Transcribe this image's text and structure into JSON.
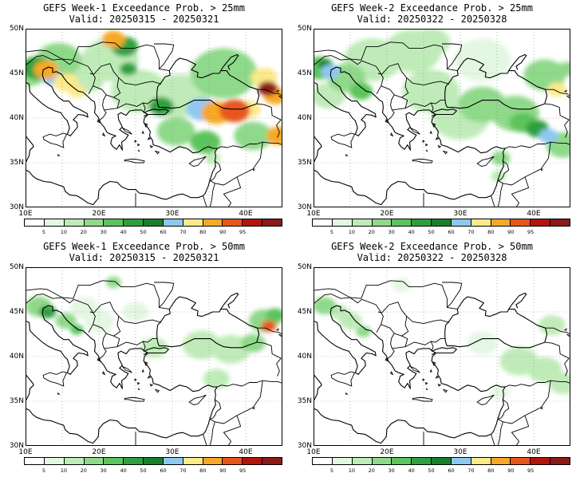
{
  "panels": [
    {
      "title": "GEFS Week-1 Exceedance Prob. > 25mm",
      "valid": "Valid: 20250315 - 20250321",
      "set": "w1_25"
    },
    {
      "title": "GEFS Week-2 Exceedance Prob. > 25mm",
      "valid": "Valid: 20250322 - 20250328",
      "set": "w2_25"
    },
    {
      "title": "GEFS Week-1 Exceedance Prob. > 50mm",
      "valid": "Valid: 20250315 - 20250321",
      "set": "w1_50"
    },
    {
      "title": "GEFS Week-2 Exceedance Prob. > 50mm",
      "valid": "Valid: 20250322 - 20250328",
      "set": "w2_50"
    }
  ],
  "axes": {
    "lat_labels": [
      "50N",
      "45N",
      "40N",
      "35N",
      "30N"
    ],
    "lat_values": [
      50,
      45,
      40,
      35,
      30
    ],
    "lon_labels": [
      "10E",
      "20E",
      "30E",
      "40E"
    ],
    "lon_values": [
      10,
      20,
      30,
      40
    ],
    "lon_range": [
      10,
      45
    ],
    "lat_range": [
      30,
      50
    ],
    "grid": "dotted"
  },
  "colorbar": {
    "levels": [
      "5",
      "10",
      "20",
      "30",
      "40",
      "50",
      "60",
      "70",
      "80",
      "90",
      "95"
    ],
    "colors": [
      "#ffffff",
      "#e4f7e2",
      "#bfebb8",
      "#8fd98a",
      "#5cc45c",
      "#2ea040",
      "#1a7f2a",
      "#8ec8f0",
      "#fbe98a",
      "#f7a828",
      "#e8561c",
      "#b3150e",
      "#8c1a1a"
    ]
  },
  "fields": {
    "w1_25": [
      {
        "lon": 11.5,
        "lat": 45.6,
        "r": 1.6,
        "lvl": 5
      },
      {
        "lon": 12.8,
        "lat": 45.4,
        "r": 1.3,
        "lvl": 9
      },
      {
        "lon": 13.6,
        "lat": 44.6,
        "r": 1.1,
        "lvl": 7
      },
      {
        "lon": 15.5,
        "lat": 44.0,
        "r": 1.3,
        "lvl": 8
      },
      {
        "lon": 17.0,
        "lat": 43.0,
        "r": 0.9,
        "lvl": 8
      },
      {
        "lon": 10.5,
        "lat": 45.0,
        "r": 1.8,
        "lvl": 3
      },
      {
        "lon": 14.5,
        "lat": 46.5,
        "r": 2.4,
        "lvl": 3
      },
      {
        "lon": 18.0,
        "lat": 44.5,
        "r": 2.2,
        "lvl": 2
      },
      {
        "lon": 21.5,
        "lat": 46.5,
        "r": 3.0,
        "lvl": 2
      },
      {
        "lon": 22.0,
        "lat": 48.8,
        "r": 1.2,
        "lvl": 9
      },
      {
        "lon": 23.5,
        "lat": 48.0,
        "r": 1.4,
        "lvl": 5
      },
      {
        "lon": 24.0,
        "lat": 45.5,
        "r": 0.9,
        "lvl": 5
      },
      {
        "lon": 25.5,
        "lat": 43.0,
        "r": 3.0,
        "lvl": 2
      },
      {
        "lon": 28.5,
        "lat": 41.3,
        "r": 1.3,
        "lvl": 5
      },
      {
        "lon": 30.5,
        "lat": 38.5,
        "r": 2.0,
        "lvl": 3
      },
      {
        "lon": 31.0,
        "lat": 42.5,
        "r": 3.0,
        "lvl": 2
      },
      {
        "lon": 34.0,
        "lat": 41.0,
        "r": 1.6,
        "lvl": 7
      },
      {
        "lon": 36.0,
        "lat": 40.6,
        "r": 1.6,
        "lvl": 9
      },
      {
        "lon": 38.5,
        "lat": 40.8,
        "r": 1.6,
        "lvl": 10
      },
      {
        "lon": 40.5,
        "lat": 41.0,
        "r": 1.2,
        "lvl": 8
      },
      {
        "lon": 37.0,
        "lat": 45.0,
        "r": 3.5,
        "lvl": 3
      },
      {
        "lon": 42.5,
        "lat": 44.5,
        "r": 1.4,
        "lvl": 8
      },
      {
        "lon": 43.0,
        "lat": 43.3,
        "r": 1.0,
        "lvl": 12
      },
      {
        "lon": 44.0,
        "lat": 42.5,
        "r": 1.2,
        "lvl": 9
      },
      {
        "lon": 44.5,
        "lat": 38.0,
        "r": 1.3,
        "lvl": 9
      },
      {
        "lon": 41.0,
        "lat": 38.0,
        "r": 2.0,
        "lvl": 3
      },
      {
        "lon": 34.5,
        "lat": 37.3,
        "r": 1.6,
        "lvl": 4
      },
      {
        "lon": 35.5,
        "lat": 35.5,
        "r": 0.8,
        "lvl": 2
      }
    ],
    "w2_25": [
      {
        "lon": 10.8,
        "lat": 45.6,
        "r": 1.6,
        "lvl": 4
      },
      {
        "lon": 12.3,
        "lat": 45.2,
        "r": 1.0,
        "lvl": 7
      },
      {
        "lon": 11.5,
        "lat": 46.0,
        "r": 0.7,
        "lvl": 6
      },
      {
        "lon": 14.5,
        "lat": 44.5,
        "r": 2.0,
        "lvl": 3
      },
      {
        "lon": 16.5,
        "lat": 43.0,
        "r": 1.2,
        "lvl": 4
      },
      {
        "lon": 12.0,
        "lat": 42.5,
        "r": 1.8,
        "lvl": 2
      },
      {
        "lon": 18.0,
        "lat": 46.5,
        "r": 3.0,
        "lvl": 2
      },
      {
        "lon": 23.5,
        "lat": 47.5,
        "r": 3.0,
        "lvl": 2
      },
      {
        "lon": 26.0,
        "lat": 43.0,
        "r": 3.0,
        "lvl": 2
      },
      {
        "lon": 30.0,
        "lat": 40.0,
        "r": 3.0,
        "lvl": 2
      },
      {
        "lon": 33.0,
        "lat": 41.5,
        "r": 2.5,
        "lvl": 3
      },
      {
        "lon": 37.5,
        "lat": 40.5,
        "r": 2.5,
        "lvl": 3
      },
      {
        "lon": 38.5,
        "lat": 39.5,
        "r": 1.4,
        "lvl": 4
      },
      {
        "lon": 40.5,
        "lat": 38.8,
        "r": 1.2,
        "lvl": 5
      },
      {
        "lon": 42.0,
        "lat": 38.0,
        "r": 1.0,
        "lvl": 7
      },
      {
        "lon": 43.2,
        "lat": 43.2,
        "r": 1.0,
        "lvl": 8
      },
      {
        "lon": 41.5,
        "lat": 44.8,
        "r": 2.2,
        "lvl": 3
      },
      {
        "lon": 33.0,
        "lat": 46.5,
        "r": 3.0,
        "lvl": 1
      },
      {
        "lon": 26.0,
        "lat": 48.5,
        "r": 2.0,
        "lvl": 2
      },
      {
        "lon": 35.5,
        "lat": 35.5,
        "r": 1.0,
        "lvl": 3
      },
      {
        "lon": 35.2,
        "lat": 33.5,
        "r": 0.8,
        "lvl": 2
      },
      {
        "lon": 44.0,
        "lat": 37.0,
        "r": 1.8,
        "lvl": 3
      },
      {
        "lon": 44.5,
        "lat": 45.5,
        "r": 1.0,
        "lvl": 3
      }
    ],
    "w1_50": [
      {
        "lon": 11.8,
        "lat": 45.6,
        "r": 1.4,
        "lvl": 3
      },
      {
        "lon": 13.0,
        "lat": 45.0,
        "r": 0.9,
        "lvl": 5
      },
      {
        "lon": 15.5,
        "lat": 44.0,
        "r": 1.1,
        "lvl": 3
      },
      {
        "lon": 17.0,
        "lat": 43.0,
        "r": 0.7,
        "lvl": 4
      },
      {
        "lon": 22.0,
        "lat": 48.3,
        "r": 0.8,
        "lvl": 3
      },
      {
        "lon": 18.0,
        "lat": 45.5,
        "r": 1.5,
        "lvl": 1
      },
      {
        "lon": 34.0,
        "lat": 41.3,
        "r": 2.0,
        "lvl": 2
      },
      {
        "lon": 38.0,
        "lat": 40.8,
        "r": 2.0,
        "lvl": 2
      },
      {
        "lon": 41.0,
        "lat": 41.5,
        "r": 1.3,
        "lvl": 3
      },
      {
        "lon": 42.5,
        "lat": 44.0,
        "r": 1.6,
        "lvl": 3
      },
      {
        "lon": 43.1,
        "lat": 43.4,
        "r": 0.8,
        "lvl": 10
      },
      {
        "lon": 44.0,
        "lat": 44.6,
        "r": 1.0,
        "lvl": 4
      },
      {
        "lon": 36.0,
        "lat": 37.5,
        "r": 1.4,
        "lvl": 2
      },
      {
        "lon": 27.5,
        "lat": 41.0,
        "r": 1.4,
        "lvl": 2
      },
      {
        "lon": 25.0,
        "lat": 45.0,
        "r": 1.4,
        "lvl": 1
      },
      {
        "lon": 20.0,
        "lat": 44.0,
        "r": 1.6,
        "lvl": 1
      }
    ],
    "w2_50": [
      {
        "lon": 11.5,
        "lat": 45.7,
        "r": 1.2,
        "lvl": 3
      },
      {
        "lon": 13.5,
        "lat": 45.0,
        "r": 1.0,
        "lvl": 2
      },
      {
        "lon": 15.0,
        "lat": 44.0,
        "r": 1.2,
        "lvl": 2
      },
      {
        "lon": 16.8,
        "lat": 42.8,
        "r": 0.8,
        "lvl": 3
      },
      {
        "lon": 22.0,
        "lat": 48.0,
        "r": 1.0,
        "lvl": 1
      },
      {
        "lon": 38.0,
        "lat": 39.5,
        "r": 2.0,
        "lvl": 2
      },
      {
        "lon": 41.5,
        "lat": 38.5,
        "r": 1.8,
        "lvl": 2
      },
      {
        "lon": 42.5,
        "lat": 43.5,
        "r": 1.4,
        "lvl": 2
      },
      {
        "lon": 35.5,
        "lat": 36.0,
        "r": 1.0,
        "lvl": 1
      },
      {
        "lon": 33.0,
        "lat": 41.5,
        "r": 1.6,
        "lvl": 1
      },
      {
        "lon": 44.0,
        "lat": 37.0,
        "r": 1.5,
        "lvl": 2
      }
    ]
  }
}
